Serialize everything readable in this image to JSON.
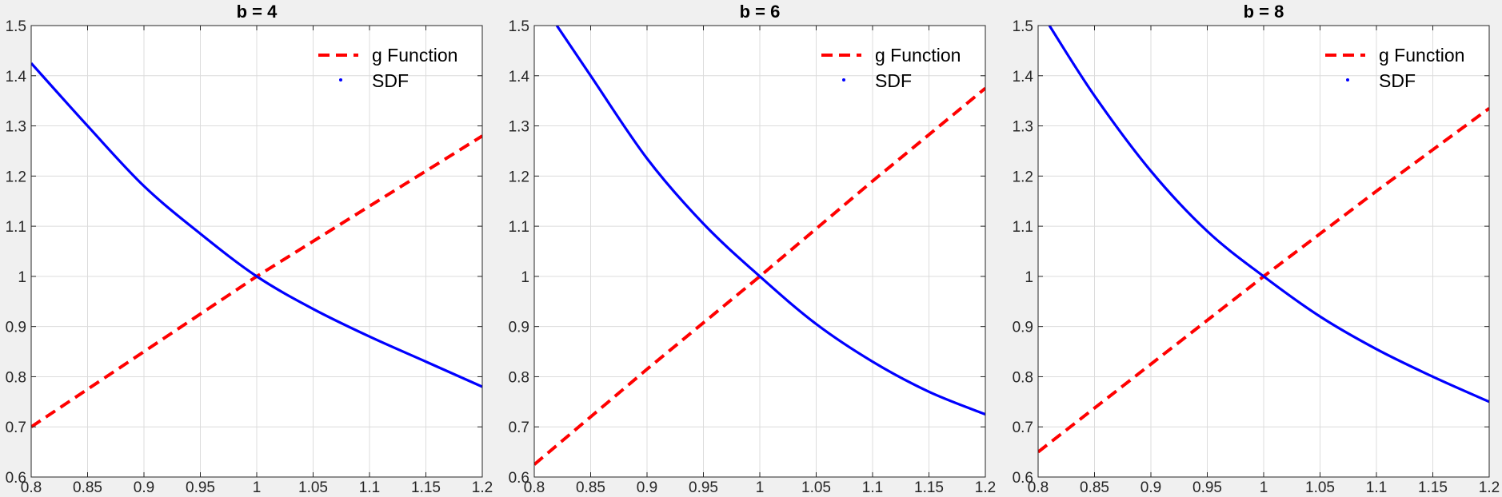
{
  "colors": {
    "figure_background": "#f0f0f0",
    "axes_background": "#ffffff",
    "grid": "#dcdcdc",
    "axis": "#262626",
    "g_function": "#ff0000",
    "sdf": "#0000ff"
  },
  "chart_data": [
    {
      "type": "line",
      "title": "b = 4",
      "xlabel": "",
      "ylabel": "",
      "xlim": [
        0.8,
        1.2
      ],
      "ylim": [
        0.6,
        1.5
      ],
      "xticks": [
        "0.8",
        "0.85",
        "0.9",
        "0.95",
        "1",
        "1.05",
        "1.1",
        "1.15",
        "1.2"
      ],
      "yticks": [
        "0.6",
        "0.7",
        "0.8",
        "0.9",
        "1",
        "1.1",
        "1.2",
        "1.3",
        "1.4",
        "1.5"
      ],
      "grid": true,
      "legend_position": "top-right",
      "series": [
        {
          "name": "g Function",
          "style": "dashed",
          "color": "#ff0000",
          "x": [
            0.8,
            0.9,
            1.0,
            1.1,
            1.2
          ],
          "y": [
            0.7,
            0.85,
            1.0,
            1.14,
            1.28
          ]
        },
        {
          "name": "SDF",
          "style": "solid",
          "color": "#0000ff",
          "x": [
            0.8,
            0.85,
            0.9,
            0.95,
            1.0,
            1.05,
            1.1,
            1.15,
            1.2
          ],
          "y": [
            1.425,
            1.3,
            1.18,
            1.085,
            1.0,
            0.935,
            0.88,
            0.83,
            0.78
          ]
        }
      ]
    },
    {
      "type": "line",
      "title": "b = 6",
      "xlabel": "",
      "ylabel": "",
      "xlim": [
        0.8,
        1.2
      ],
      "ylim": [
        0.6,
        1.5
      ],
      "xticks": [
        "0.8",
        "0.85",
        "0.9",
        "0.95",
        "1",
        "1.05",
        "1.1",
        "1.15",
        "1.2"
      ],
      "yticks": [
        "0.6",
        "0.7",
        "0.8",
        "0.9",
        "1",
        "1.1",
        "1.2",
        "1.3",
        "1.4",
        "1.5"
      ],
      "grid": true,
      "legend_position": "top-right",
      "series": [
        {
          "name": "g Function",
          "style": "dashed",
          "color": "#ff0000",
          "x": [
            0.8,
            0.9,
            1.0,
            1.1,
            1.2
          ],
          "y": [
            0.625,
            0.815,
            1.0,
            1.19,
            1.375
          ]
        },
        {
          "name": "SDF",
          "style": "solid",
          "color": "#0000ff",
          "x": [
            0.82,
            0.85,
            0.9,
            0.95,
            1.0,
            1.05,
            1.1,
            1.15,
            1.2
          ],
          "y": [
            1.5,
            1.4,
            1.235,
            1.105,
            1.0,
            0.905,
            0.83,
            0.77,
            0.725
          ]
        }
      ]
    },
    {
      "type": "line",
      "title": "b = 8",
      "xlabel": "",
      "ylabel": "",
      "xlim": [
        0.8,
        1.2
      ],
      "ylim": [
        0.6,
        1.5
      ],
      "xticks": [
        "0.8",
        "0.85",
        "0.9",
        "0.95",
        "1",
        "1.05",
        "1.1",
        "1.15",
        "1.2"
      ],
      "yticks": [
        "0.6",
        "0.7",
        "0.8",
        "0.9",
        "1",
        "1.1",
        "1.2",
        "1.3",
        "1.4",
        "1.5"
      ],
      "grid": true,
      "legend_position": "top-right",
      "series": [
        {
          "name": "g Function",
          "style": "dashed",
          "color": "#ff0000",
          "x": [
            0.8,
            0.9,
            1.0,
            1.1,
            1.2
          ],
          "y": [
            0.65,
            0.825,
            1.0,
            1.17,
            1.335
          ]
        },
        {
          "name": "SDF",
          "style": "solid",
          "color": "#0000ff",
          "x": [
            0.81,
            0.85,
            0.9,
            0.95,
            1.0,
            1.05,
            1.1,
            1.15,
            1.2
          ],
          "y": [
            1.5,
            1.36,
            1.21,
            1.09,
            1.0,
            0.92,
            0.855,
            0.8,
            0.75
          ]
        }
      ]
    }
  ]
}
